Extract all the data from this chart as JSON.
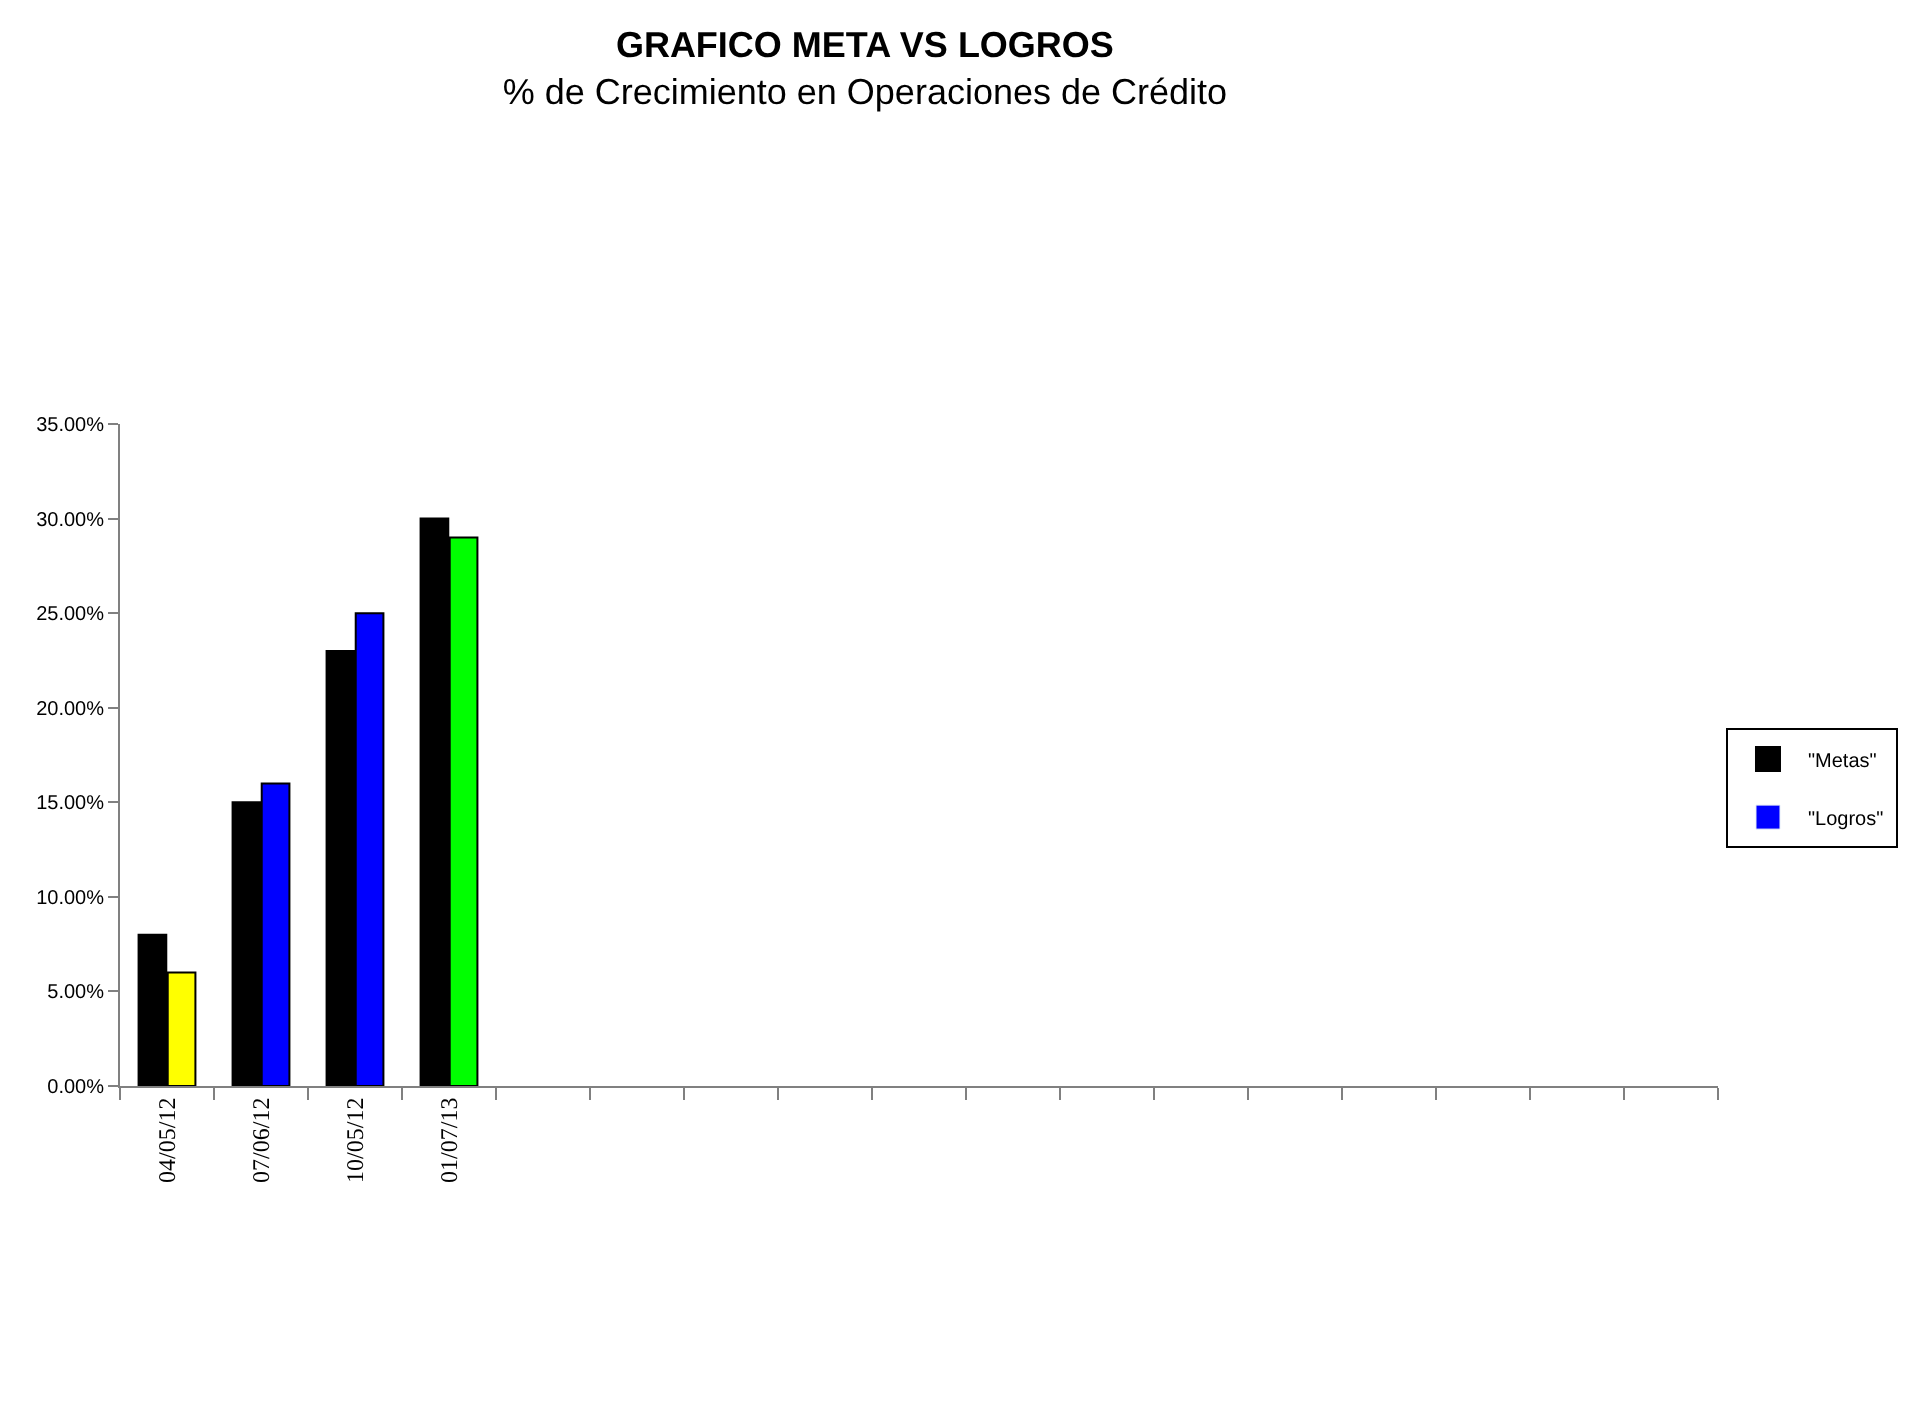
{
  "chart_data": {
    "type": "bar",
    "title": "GRAFICO META VS LOGROS",
    "subtitle": "% de Crecimiento en Operaciones de Crédito",
    "categories": [
      "04/05/12",
      "07/06/12",
      "10/05/12",
      "01/07/13",
      null,
      null,
      null,
      null,
      null,
      null,
      null,
      null,
      null,
      null,
      null,
      null,
      null
    ],
    "series": [
      {
        "name": "\"Metas\"",
        "color": "#000000",
        "values": [
          8,
          15,
          23,
          30,
          null,
          null,
          null,
          null,
          null,
          null,
          null,
          null,
          null,
          null,
          null,
          null,
          null
        ]
      },
      {
        "name": "\"Logros\"",
        "color": "#0000ff",
        "colors": [
          "#ffff00",
          "#0000ff",
          "#0000ff",
          "#00ff00",
          null,
          null,
          null,
          null,
          null,
          null,
          null,
          null,
          null,
          null,
          null,
          null,
          null
        ],
        "values": [
          6,
          16,
          25,
          29,
          null,
          null,
          null,
          null,
          null,
          null,
          null,
          null,
          null,
          null,
          null,
          null,
          null
        ]
      }
    ],
    "ylim": [
      0,
      35
    ],
    "yticks": [
      {
        "value": 0,
        "label": "0.00%"
      },
      {
        "value": 5,
        "label": "5.00%"
      },
      {
        "value": 10,
        "label": "10.00%"
      },
      {
        "value": 15,
        "label": "15.00%"
      },
      {
        "value": 20,
        "label": "20.00%"
      },
      {
        "value": 25,
        "label": "25.00%"
      },
      {
        "value": 30,
        "label": "30.00%"
      },
      {
        "value": 35,
        "label": "35.00%"
      }
    ],
    "legend": "right"
  }
}
